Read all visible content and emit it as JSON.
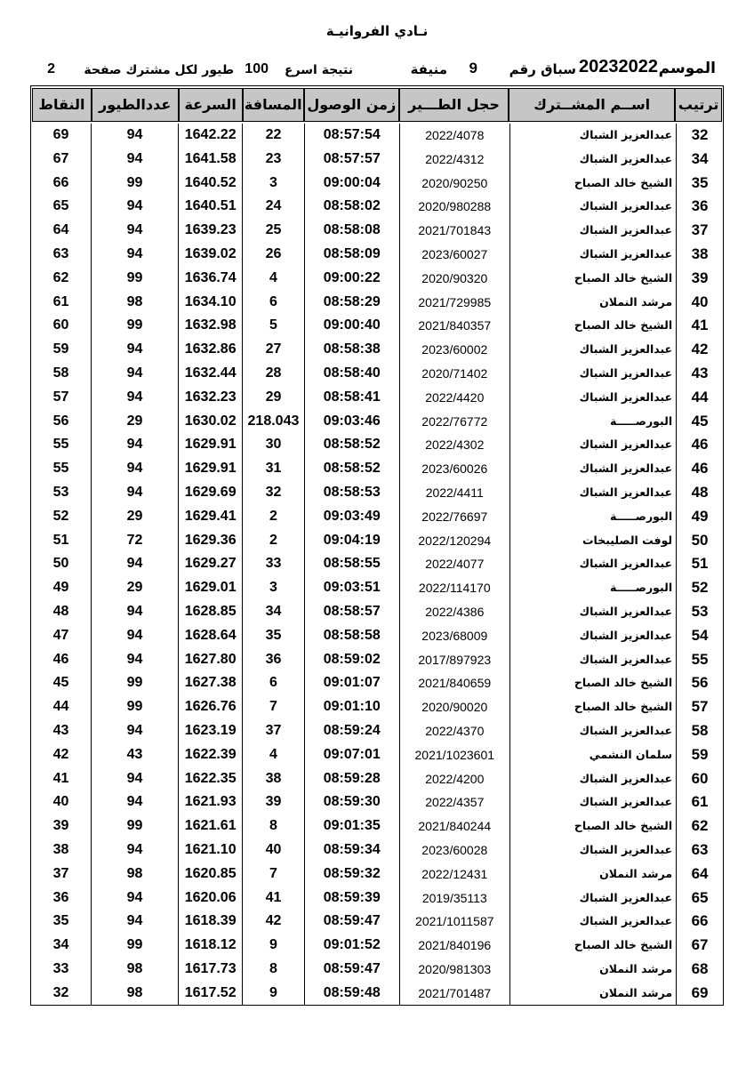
{
  "title": "نـادي الفروانيـة",
  "header": {
    "season_label": "الموسم",
    "season_value": "20232022",
    "race_label": "سباق رقم",
    "race_number": "9",
    "location": "منيفة",
    "result_label": "نتيجة اسرع",
    "result_count": "100",
    "result_suffix": "طيور لكل مشترك صفحة",
    "page_number": "2"
  },
  "colors": {
    "header_row_bg": "#c6c6c6",
    "border": "#000000",
    "text": "#000000",
    "page_bg": "#ffffff"
  },
  "table": {
    "columns": [
      "ترتيب",
      "اســم المشــترك",
      "حجل الطـــير",
      "زمن الوصول",
      "المسافة",
      "السرعة",
      "عددالطيور",
      "النقاط"
    ],
    "rows": [
      [
        "32",
        "عبدالعزيز الشباك",
        "2022/4078",
        "08:57:54",
        "22",
        "1642.22",
        "94",
        "69"
      ],
      [
        "34",
        "عبدالعزيز الشباك",
        "2022/4312",
        "08:57:57",
        "23",
        "1641.58",
        "94",
        "67"
      ],
      [
        "35",
        "الشيخ خالد الصباح",
        "2020/90250",
        "09:00:04",
        "3",
        "1640.52",
        "99",
        "66"
      ],
      [
        "36",
        "عبدالعزيز الشباك",
        "2020/980288",
        "08:58:02",
        "24",
        "1640.51",
        "94",
        "65"
      ],
      [
        "37",
        "عبدالعزيز الشباك",
        "2021/701843",
        "08:58:08",
        "25",
        "1639.23",
        "94",
        "64"
      ],
      [
        "38",
        "عبدالعزيز الشباك",
        "2023/60027",
        "08:58:09",
        "26",
        "1639.02",
        "94",
        "63"
      ],
      [
        "39",
        "الشيخ خالد الصباح",
        "2020/90320",
        "09:00:22",
        "4",
        "1636.74",
        "99",
        "62"
      ],
      [
        "40",
        "مرشد النملان",
        "2021/729985",
        "08:58:29",
        "6",
        "1634.10",
        "98",
        "61"
      ],
      [
        "41",
        "الشيخ خالد الصباح",
        "2021/840357",
        "09:00:40",
        "5",
        "1632.98",
        "99",
        "60"
      ],
      [
        "42",
        "عبدالعزيز الشباك",
        "2023/60002",
        "08:58:38",
        "27",
        "1632.86",
        "94",
        "59"
      ],
      [
        "43",
        "عبدالعزيز الشباك",
        "2020/71402",
        "08:58:40",
        "28",
        "1632.44",
        "94",
        "58"
      ],
      [
        "44",
        "عبدالعزيز الشباك",
        "2022/4420",
        "08:58:41",
        "29",
        "1632.23",
        "94",
        "57"
      ],
      [
        "45",
        "البورصـــــة",
        "2022/76772",
        "09:03:46",
        "218.043",
        "1630.02",
        "29",
        "56"
      ],
      [
        "46",
        "عبدالعزيز الشباك",
        "2022/4302",
        "08:58:52",
        "30",
        "1629.91",
        "94",
        "55"
      ],
      [
        "46",
        "عبدالعزيز الشباك",
        "2023/60026",
        "08:58:52",
        "31",
        "1629.91",
        "94",
        "55"
      ],
      [
        "48",
        "عبدالعزيز الشباك",
        "2022/4411",
        "08:58:53",
        "32",
        "1629.69",
        "94",
        "53"
      ],
      [
        "49",
        "البورصـــــة",
        "2022/76697",
        "09:03:49",
        "2",
        "1629.41",
        "29",
        "52"
      ],
      [
        "50",
        "لوفت الصليبخات",
        "2022/120294",
        "09:04:19",
        "2",
        "1629.36",
        "72",
        "51"
      ],
      [
        "51",
        "عبدالعزيز الشباك",
        "2022/4077",
        "08:58:55",
        "33",
        "1629.27",
        "94",
        "50"
      ],
      [
        "52",
        "البورصـــــة",
        "2022/114170",
        "09:03:51",
        "3",
        "1629.01",
        "29",
        "49"
      ],
      [
        "53",
        "عبدالعزيز الشباك",
        "2022/4386",
        "08:58:57",
        "34",
        "1628.85",
        "94",
        "48"
      ],
      [
        "54",
        "عبدالعزيز الشباك",
        "2023/68009",
        "08:58:58",
        "35",
        "1628.64",
        "94",
        "47"
      ],
      [
        "55",
        "عبدالعزيز الشباك",
        "2017/897923",
        "08:59:02",
        "36",
        "1627.80",
        "94",
        "46"
      ],
      [
        "56",
        "الشيخ خالد الصباح",
        "2021/840659",
        "09:01:07",
        "6",
        "1627.38",
        "99",
        "45"
      ],
      [
        "57",
        "الشيخ خالد الصباح",
        "2020/90020",
        "09:01:10",
        "7",
        "1626.76",
        "99",
        "44"
      ],
      [
        "58",
        "عبدالعزيز الشباك",
        "2022/4370",
        "08:59:24",
        "37",
        "1623.19",
        "94",
        "43"
      ],
      [
        "59",
        "سلمان النشمي",
        "2021/1023601",
        "09:07:01",
        "4",
        "1622.39",
        "43",
        "42"
      ],
      [
        "60",
        "عبدالعزيز الشباك",
        "2022/4200",
        "08:59:28",
        "38",
        "1622.35",
        "94",
        "41"
      ],
      [
        "61",
        "عبدالعزيز الشباك",
        "2022/4357",
        "08:59:30",
        "39",
        "1621.93",
        "94",
        "40"
      ],
      [
        "62",
        "الشيخ خالد الصباح",
        "2021/840244",
        "09:01:35",
        "8",
        "1621.61",
        "99",
        "39"
      ],
      [
        "63",
        "عبدالعزيز الشباك",
        "2023/60028",
        "08:59:34",
        "40",
        "1621.10",
        "94",
        "38"
      ],
      [
        "64",
        "مرشد النملان",
        "2022/12431",
        "08:59:32",
        "7",
        "1620.85",
        "98",
        "37"
      ],
      [
        "65",
        "عبدالعزيز الشباك",
        "2019/35113",
        "08:59:39",
        "41",
        "1620.06",
        "94",
        "36"
      ],
      [
        "66",
        "عبدالعزيز الشباك",
        "2021/1011587",
        "08:59:47",
        "42",
        "1618.39",
        "94",
        "35"
      ],
      [
        "67",
        "الشيخ خالد الصباح",
        "2021/840196",
        "09:01:52",
        "9",
        "1618.12",
        "99",
        "34"
      ],
      [
        "68",
        "مرشد النملان",
        "2020/981303",
        "08:59:47",
        "8",
        "1617.73",
        "98",
        "33"
      ],
      [
        "69",
        "مرشد النملان",
        "2021/701487",
        "08:59:48",
        "9",
        "1617.52",
        "98",
        "32"
      ]
    ]
  }
}
